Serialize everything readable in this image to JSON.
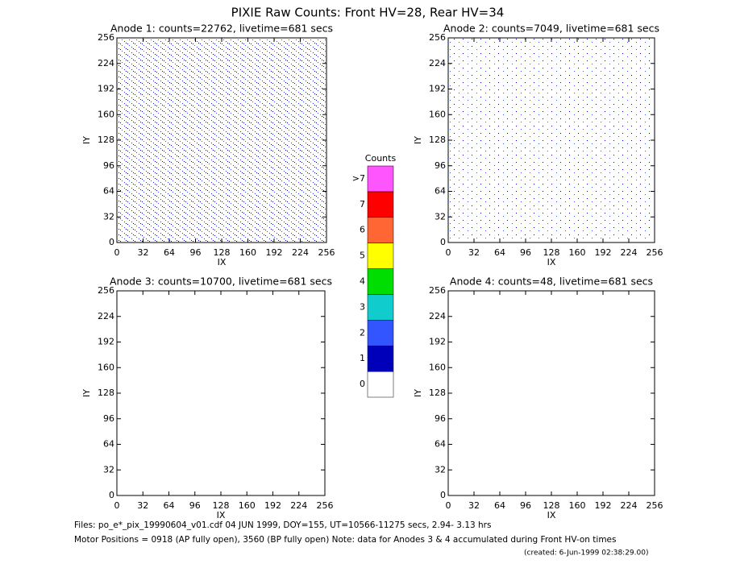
{
  "title": "PIXIE Raw Counts:  Front HV=28, Rear HV=34",
  "chart_data": [
    {
      "type": "heatmap",
      "title": "Anode 1: counts=22762, livetime=681 secs",
      "xlabel": "IX",
      "ylabel": "IY",
      "xlim": [
        0,
        256
      ],
      "ylim": [
        0,
        256
      ],
      "xticks": [
        0,
        32,
        64,
        96,
        128,
        160,
        192,
        224,
        256
      ],
      "yticks": [
        0,
        32,
        64,
        96,
        128,
        160,
        192,
        224,
        256
      ]
    },
    {
      "type": "heatmap",
      "title": "Anode 2: counts=7049, livetime=681 secs",
      "xlabel": "IX",
      "ylabel": "IY",
      "xlim": [
        0,
        256
      ],
      "ylim": [
        0,
        256
      ],
      "xticks": [
        0,
        32,
        64,
        96,
        128,
        160,
        192,
        224,
        256
      ],
      "yticks": [
        0,
        32,
        64,
        96,
        128,
        160,
        192,
        224,
        256
      ]
    },
    {
      "type": "heatmap",
      "title": "Anode 3: counts=10700, livetime=681 secs",
      "xlabel": "IX",
      "ylabel": "IY",
      "xlim": [
        0,
        256
      ],
      "ylim": [
        0,
        256
      ],
      "xticks": [
        0,
        32,
        64,
        96,
        128,
        160,
        192,
        224,
        256
      ],
      "yticks": [
        0,
        32,
        64,
        96,
        128,
        160,
        192,
        224,
        256
      ]
    },
    {
      "type": "heatmap",
      "title": "Anode 4: counts=48, livetime=681 secs",
      "xlabel": "IX",
      "ylabel": "IY",
      "xlim": [
        0,
        256
      ],
      "ylim": [
        0,
        256
      ],
      "xticks": [
        0,
        32,
        64,
        96,
        128,
        160,
        192,
        224,
        256
      ],
      "yticks": [
        0,
        32,
        64,
        96,
        128,
        160,
        192,
        224,
        256
      ]
    }
  ],
  "colorbar": {
    "title": "Counts",
    "labels": [
      "0",
      "1",
      "2",
      "3",
      "4",
      "5",
      "6",
      "7",
      ">7"
    ],
    "colors": [
      "#ffffff",
      "#0000bb",
      "#3355ff",
      "#11cccc",
      "#00dd00",
      "#ffff00",
      "#ff6633",
      "#ff0000",
      "#ff55ff"
    ]
  },
  "footer": [
    "Files: po_e*_pix_19990604_v01.cdf    04 JUN 1999, DOY=155, UT=10566-11275 secs,  2.94- 3.13 hrs",
    "Motor Positions = 0918 (AP fully open), 3560 (BP fully open)    Note: data for Anodes 3 & 4 accumulated during Front HV-on times",
    "(created:  6-Jun-1999 02:38:29.00)"
  ]
}
